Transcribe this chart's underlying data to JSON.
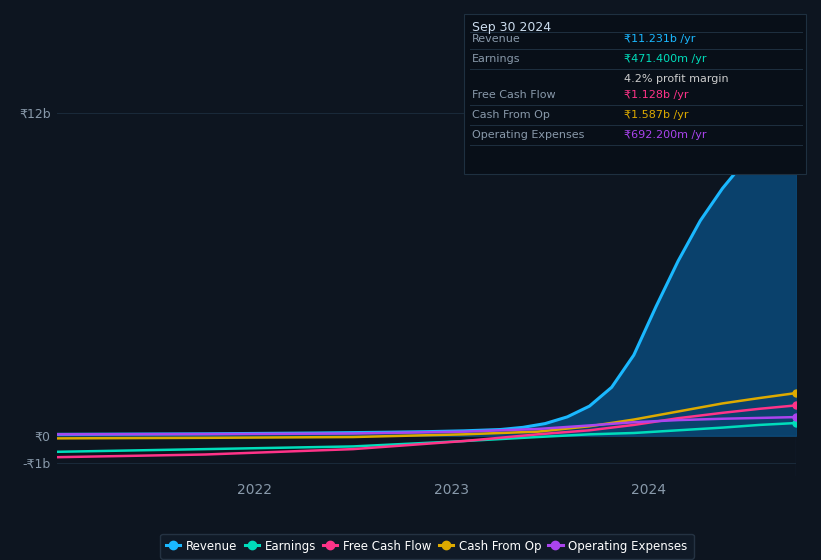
{
  "bg_color": "#0d1520",
  "plot_bg_color": "#0d1520",
  "grid_color": "#1a2a3a",
  "text_color": "#8899aa",
  "ylim": [
    -1500000000.0,
    13500000000.0
  ],
  "yticks": [
    -1000000000.0,
    0,
    12000000000.0
  ],
  "ytick_labels": [
    "-₹1b",
    "₹0",
    "₹12b"
  ],
  "xtick_positions": [
    0.267,
    0.533,
    0.8
  ],
  "xtick_labels": [
    "2022",
    "2023",
    "2024"
  ],
  "series": {
    "Revenue": {
      "color": "#1ab8ff",
      "fill_color": "#0a4a7a",
      "fill_alpha": 0.85,
      "linewidth": 2.2,
      "values_x": [
        0.0,
        0.05,
        0.1,
        0.15,
        0.2,
        0.25,
        0.3,
        0.35,
        0.4,
        0.45,
        0.5,
        0.55,
        0.6,
        0.63,
        0.66,
        0.69,
        0.72,
        0.75,
        0.78,
        0.81,
        0.84,
        0.87,
        0.9,
        0.93,
        0.96,
        1.0
      ],
      "values_y": [
        50000000,
        55000000,
        60000000,
        65000000,
        70000000,
        80000000,
        90000000,
        100000000,
        115000000,
        130000000,
        150000000,
        180000000,
        230000000,
        310000000,
        450000000,
        700000000,
        1100000000,
        1800000000,
        3000000000,
        4800000000,
        6500000000,
        8000000000,
        9200000000,
        10200000000,
        10900000000,
        11231000000
      ]
    },
    "Earnings": {
      "color": "#00ddbb",
      "linewidth": 1.8,
      "values_x": [
        0.0,
        0.2,
        0.4,
        0.55,
        0.65,
        0.72,
        0.78,
        0.84,
        0.9,
        0.95,
        1.0
      ],
      "values_y": [
        -600000000,
        -500000000,
        -400000000,
        -200000000,
        -50000000,
        50000000,
        100000000,
        200000000,
        300000000,
        400000000,
        471400000
      ]
    },
    "Free Cash Flow": {
      "color": "#ff3388",
      "linewidth": 1.8,
      "values_x": [
        0.0,
        0.2,
        0.4,
        0.55,
        0.65,
        0.72,
        0.78,
        0.84,
        0.9,
        0.95,
        1.0
      ],
      "values_y": [
        -800000000,
        -700000000,
        -500000000,
        -200000000,
        50000000,
        200000000,
        400000000,
        650000000,
        850000000,
        1000000000,
        1128000000
      ]
    },
    "Cash From Op": {
      "color": "#ddaa00",
      "linewidth": 1.8,
      "values_x": [
        0.0,
        0.2,
        0.4,
        0.55,
        0.65,
        0.72,
        0.78,
        0.84,
        0.9,
        0.95,
        1.0
      ],
      "values_y": [
        -100000000,
        -80000000,
        -50000000,
        50000000,
        150000000,
        350000000,
        600000000,
        900000000,
        1200000000,
        1400000000,
        1587000000
      ]
    },
    "Operating Expenses": {
      "color": "#aa44ee",
      "linewidth": 1.8,
      "values_x": [
        0.0,
        0.2,
        0.4,
        0.55,
        0.65,
        0.72,
        0.78,
        0.84,
        0.9,
        0.95,
        1.0
      ],
      "values_y": [
        50000000,
        60000000,
        80000000,
        150000000,
        250000000,
        380000000,
        500000000,
        580000000,
        630000000,
        660000000,
        692200000
      ]
    }
  },
  "vline_x": 1.0,
  "vline_color": "#2a4a6a",
  "tooltip": {
    "date": "Sep 30 2024",
    "bg_color": "#080f18",
    "border_color": "#1e3040",
    "title_color": "#ccddee",
    "label_color": "#8899aa",
    "rows": [
      {
        "label": "Revenue",
        "value": "₹11.231b /yr",
        "value_color": "#1ab8ff"
      },
      {
        "label": "Earnings",
        "value": "₹471.400m /yr",
        "value_color": "#00ddbb"
      },
      {
        "label": "",
        "value": "4.2% profit margin",
        "value_color": "#cccccc"
      },
      {
        "label": "Free Cash Flow",
        "value": "₹1.128b /yr",
        "value_color": "#ff3388"
      },
      {
        "label": "Cash From Op",
        "value": "₹1.587b /yr",
        "value_color": "#ddaa00"
      },
      {
        "label": "Operating Expenses",
        "value": "₹692.200m /yr",
        "value_color": "#aa44ee"
      }
    ]
  },
  "legend": [
    {
      "label": "Revenue",
      "color": "#1ab8ff"
    },
    {
      "label": "Earnings",
      "color": "#00ddbb"
    },
    {
      "label": "Free Cash Flow",
      "color": "#ff3388"
    },
    {
      "label": "Cash From Op",
      "color": "#ddaa00"
    },
    {
      "label": "Operating Expenses",
      "color": "#aa44ee"
    }
  ]
}
